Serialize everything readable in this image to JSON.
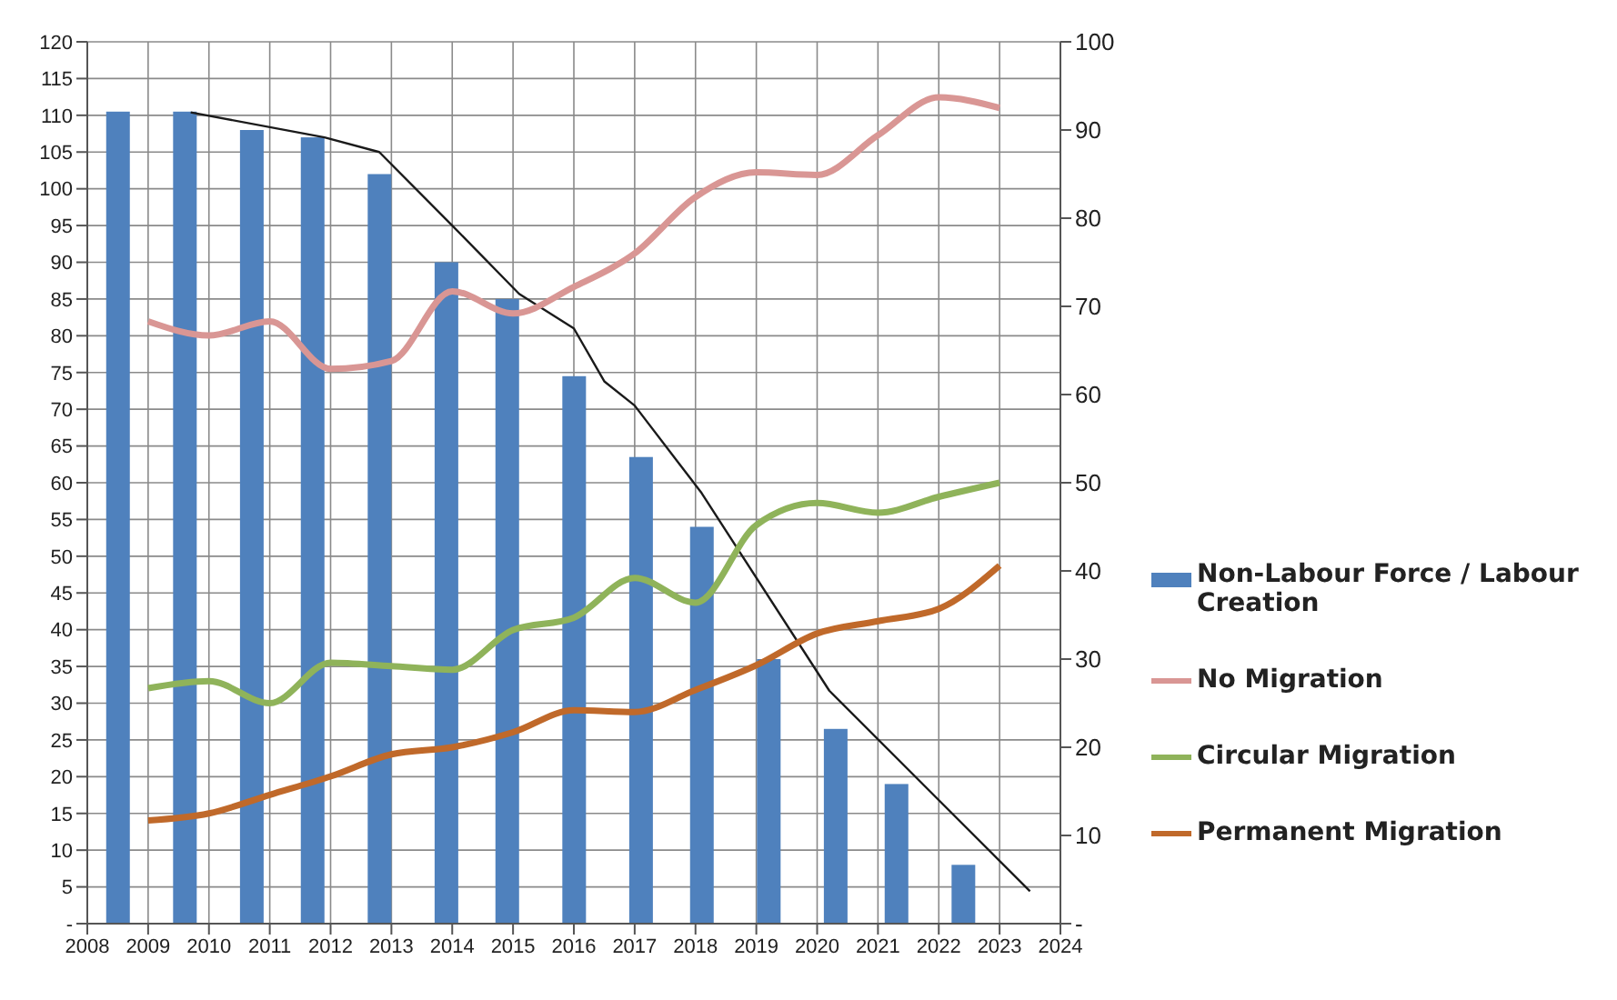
{
  "chart_data": {
    "type": "bar",
    "xlim": [
      2008,
      2024
    ],
    "xticks": [
      2008,
      2009,
      2010,
      2011,
      2012,
      2013,
      2014,
      2015,
      2016,
      2017,
      2018,
      2019,
      2020,
      2021,
      2022,
      2023,
      2024
    ],
    "ylim": [
      0,
      120
    ],
    "yticks": [
      {
        "value": 0,
        "label": "-"
      },
      5,
      10,
      15,
      20,
      25,
      30,
      35,
      40,
      45,
      50,
      55,
      60,
      65,
      70,
      75,
      80,
      85,
      90,
      95,
      100,
      105,
      110,
      115,
      120
    ],
    "y2lim": [
      0,
      100
    ],
    "y2ticks": [
      {
        "value": 0,
        "label": "-"
      },
      10,
      20,
      30,
      40,
      50,
      60,
      70,
      80,
      90,
      100
    ],
    "grid": true,
    "legend": "right",
    "marker": "none",
    "line_style": "solid",
    "series": [
      {
        "name": "Non-Labour Force / Labour Creation",
        "color": "#4f81bd",
        "x": [
          2008.5,
          2009.6,
          2010.7,
          2011.7,
          2012.8,
          2013.9,
          2014.9,
          2016.0,
          2017.1,
          2018.1,
          2019.2,
          2020.3,
          2021.3,
          2022.4
        ],
        "values": [
          110.5,
          110.5,
          108,
          107,
          102,
          90,
          85,
          74.5,
          63.5,
          54,
          36,
          26.5,
          19,
          8
        ]
      },
      {
        "type": "line",
        "color": "#1a1a1a",
        "x": [
          2009.7,
          2011.9,
          2012.8,
          2014.0,
          2015.1,
          2016.0,
          2016.5,
          2017.0,
          2018.1,
          2020.2,
          2023.5
        ],
        "values": [
          110.4,
          107,
          105,
          95,
          85.7,
          81,
          73.8,
          70.5,
          58.6,
          31.7,
          4.4
        ]
      },
      {
        "name": "No Migration",
        "type": "line",
        "axis": "y2",
        "color": "#d99694",
        "x": [
          2009,
          2010,
          2011,
          2012,
          2013,
          2014,
          2015,
          2016,
          2017,
          2018,
          2019,
          2020,
          2021,
          2022,
          2023
        ],
        "values": [
          68.3,
          66.7,
          68.3,
          62.9,
          63.8,
          71.7,
          69.2,
          72.2,
          76.0,
          82.4,
          85.2,
          84.9,
          89.4,
          93.7,
          92.5
        ]
      },
      {
        "name": "Circular Migration",
        "type": "line",
        "axis": "y2",
        "color": "#8fb35a",
        "x": [
          2009,
          2010,
          2011,
          2012,
          2013,
          2014,
          2015,
          2016,
          2017,
          2018,
          2019,
          2020,
          2021,
          2022,
          2023
        ],
        "values": [
          26.7,
          27.5,
          25,
          29.6,
          29.2,
          28.8,
          33.3,
          34.7,
          39.2,
          36.4,
          45.2,
          47.7,
          46.6,
          48.4,
          50
        ]
      },
      {
        "name": "Permanent Migration",
        "type": "line",
        "axis": "y2",
        "color": "#c0692a",
        "x": [
          2009,
          2010,
          2011,
          2012,
          2013,
          2014,
          2015,
          2016,
          2017,
          2018,
          2019,
          2020,
          2021,
          2022,
          2023
        ],
        "values": [
          11.7,
          12.5,
          14.6,
          16.7,
          19.2,
          20,
          21.7,
          24.2,
          24.0,
          26.5,
          29.3,
          32.9,
          34.3,
          35.7,
          40.6
        ]
      }
    ]
  }
}
